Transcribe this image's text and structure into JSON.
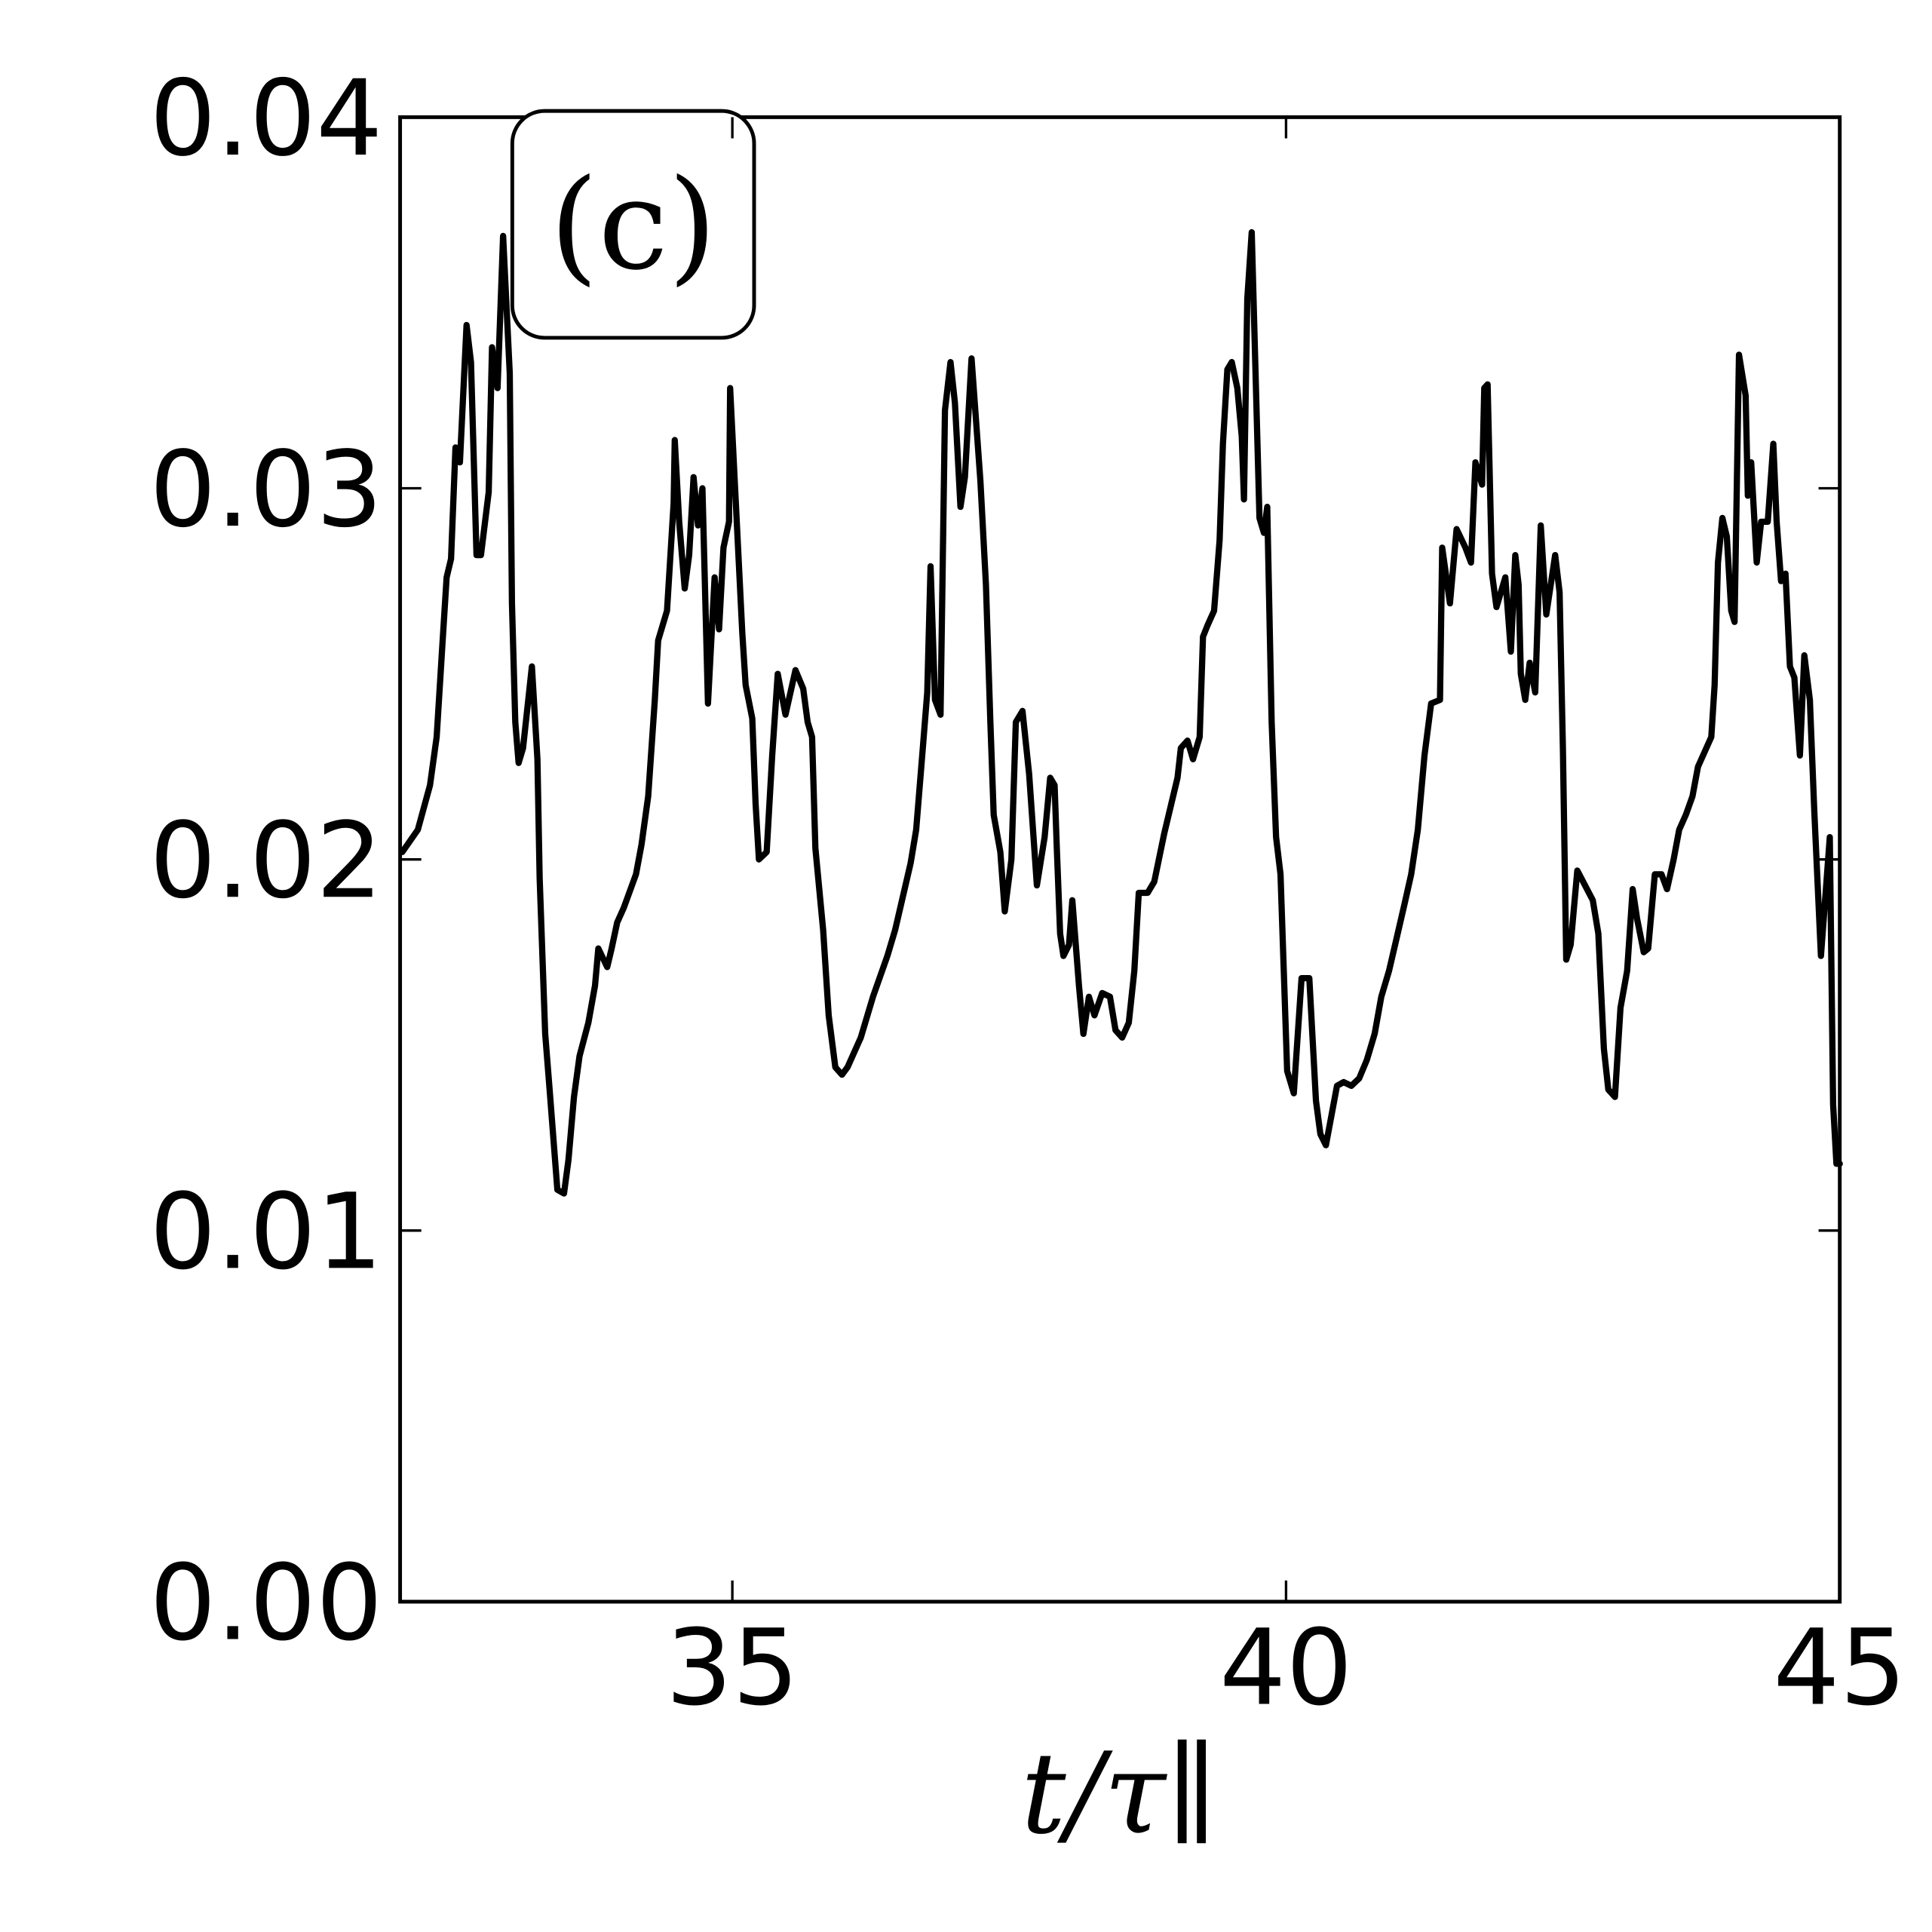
{
  "chart_data": {
    "type": "line",
    "xlabel": "t/τ∥",
    "annotation": "(c)",
    "xlim": [
      32,
      45
    ],
    "xticks": [
      35,
      40,
      45
    ],
    "ylim": [
      0,
      0.04
    ],
    "yticks": [
      {
        "value": 0,
        "label": "0.00"
      },
      0.01,
      0.02,
      0.03,
      0.04
    ],
    "grid": false,
    "series": [
      {
        "color": "#000000",
        "x": [
          32.02,
          32.16,
          32.27,
          32.33,
          32.38,
          32.42,
          32.46,
          32.5,
          32.54,
          32.6,
          32.64,
          32.69,
          32.73,
          32.8,
          32.83,
          32.88,
          32.93,
          32.99,
          33.01,
          33.04,
          33.07,
          33.11,
          33.19,
          33.24,
          33.26,
          33.31,
          33.35,
          33.42,
          33.48,
          33.52,
          33.57,
          33.62,
          33.7,
          33.76,
          33.79,
          33.87,
          33.91,
          33.96,
          34.02,
          34.13,
          34.18,
          34.24,
          34.3,
          34.33,
          34.41,
          34.47,
          34.48,
          34.52,
          34.57,
          34.61,
          34.65,
          34.69,
          34.73,
          34.78,
          34.84,
          34.88,
          34.92,
          34.97,
          34.98,
          35.03,
          35.09,
          35.12,
          35.18,
          35.21,
          35.24,
          35.31,
          35.36,
          35.41,
          35.48,
          35.57,
          35.64,
          35.68,
          35.72,
          35.75,
          35.82,
          35.87,
          35.93,
          35.99,
          36.04,
          36.16,
          36.27,
          36.4,
          36.47,
          36.54,
          36.61,
          36.66,
          36.72,
          36.76,
          36.79,
          36.83,
          36.88,
          36.92,
          36.97,
          37.01,
          37.06,
          37.1,
          37.16,
          37.24,
          37.29,
          37.33,
          37.36,
          37.42,
          37.46,
          37.52,
          37.56,
          37.62,
          37.68,
          37.75,
          37.82,
          37.87,
          37.91,
          37.93,
          37.96,
          37.99,
          38.04,
          38.07,
          38.13,
          38.17,
          38.22,
          38.27,
          38.34,
          38.41,
          38.46,
          38.52,
          38.58,
          38.63,
          38.67,
          38.75,
          38.81,
          38.9,
          39.02,
          39.05,
          39.11,
          39.16,
          39.22,
          39.25,
          39.29,
          39.35,
          39.4,
          39.43,
          39.47,
          39.51,
          39.56,
          39.6,
          39.62,
          39.65,
          39.69,
          39.76,
          39.8,
          39.83,
          39.87,
          39.91,
          39.95,
          40.01,
          40.07,
          40.14,
          40.21,
          40.27,
          40.31,
          40.36,
          40.41,
          40.46,
          40.52,
          40.59,
          40.66,
          40.73,
          40.8,
          40.86,
          40.93,
          41.0,
          41.07,
          41.13,
          41.19,
          41.25,
          41.31,
          41.39,
          41.41,
          41.48,
          41.54,
          41.62,
          41.67,
          41.71,
          41.77,
          41.79,
          41.82,
          41.86,
          41.9,
          41.98,
          42.03,
          42.07,
          42.1,
          42.12,
          42.16,
          42.2,
          42.25,
          42.3,
          42.35,
          42.43,
          42.47,
          42.5,
          42.53,
          42.57,
          42.63,
          42.77,
          42.82,
          42.87,
          42.91,
          42.97,
          43.02,
          43.08,
          43.13,
          43.17,
          43.23,
          43.27,
          43.33,
          43.39,
          43.44,
          43.5,
          43.55,
          43.61,
          43.67,
          43.72,
          43.84,
          43.87,
          43.9,
          43.94,
          43.98,
          44.02,
          44.05,
          44.09,
          44.15,
          44.17,
          44.2,
          44.25,
          44.29,
          44.35,
          44.4,
          44.43,
          44.47,
          44.51,
          44.55,
          44.59,
          44.64,
          44.68,
          44.73,
          44.77,
          44.83,
          44.91,
          44.94,
          44.97,
          45.0
        ],
        "values": [
          0.0202,
          0.0208,
          0.022,
          0.0233,
          0.0257,
          0.0276,
          0.0281,
          0.0311,
          0.0307,
          0.0344,
          0.0334,
          0.0282,
          0.0282,
          0.0299,
          0.0338,
          0.0327,
          0.0368,
          0.0331,
          0.0269,
          0.0237,
          0.0226,
          0.023,
          0.0252,
          0.0227,
          0.0195,
          0.0153,
          0.0138,
          0.0111,
          0.011,
          0.0119,
          0.0136,
          0.0147,
          0.0156,
          0.0166,
          0.0176,
          0.0171,
          0.0176,
          0.0183,
          0.0187,
          0.0196,
          0.0204,
          0.0217,
          0.0243,
          0.0259,
          0.0267,
          0.0296,
          0.0313,
          0.0291,
          0.0273,
          0.0282,
          0.0303,
          0.029,
          0.03,
          0.0242,
          0.0276,
          0.0262,
          0.0284,
          0.0291,
          0.0327,
          0.0297,
          0.0261,
          0.0247,
          0.0238,
          0.0215,
          0.02,
          0.0202,
          0.0228,
          0.025,
          0.0239,
          0.0251,
          0.0246,
          0.0237,
          0.0233,
          0.0203,
          0.0181,
          0.0158,
          0.0144,
          0.0142,
          0.0144,
          0.0152,
          0.0163,
          0.0174,
          0.0181,
          0.019,
          0.0199,
          0.0208,
          0.023,
          0.0245,
          0.0279,
          0.0243,
          0.0239,
          0.0321,
          0.0334,
          0.0323,
          0.0295,
          0.0303,
          0.0335,
          0.0302,
          0.0274,
          0.0237,
          0.0212,
          0.0202,
          0.0186,
          0.02,
          0.0237,
          0.024,
          0.0223,
          0.0193,
          0.0206,
          0.0222,
          0.022,
          0.0203,
          0.018,
          0.0174,
          0.0177,
          0.0189,
          0.0166,
          0.0153,
          0.0163,
          0.0158,
          0.0164,
          0.0163,
          0.0154,
          0.0152,
          0.0156,
          0.017,
          0.0191,
          0.0191,
          0.0194,
          0.0207,
          0.0222,
          0.023,
          0.0232,
          0.0227,
          0.0233,
          0.026,
          0.0263,
          0.0267,
          0.0286,
          0.0312,
          0.0332,
          0.0334,
          0.0327,
          0.0314,
          0.0297,
          0.0351,
          0.0369,
          0.0292,
          0.0288,
          0.0295,
          0.0237,
          0.0206,
          0.0196,
          0.0143,
          0.0137,
          0.0168,
          0.0168,
          0.0135,
          0.0126,
          0.0123,
          0.0131,
          0.0139,
          0.014,
          0.0139,
          0.0141,
          0.0146,
          0.0153,
          0.0163,
          0.017,
          0.0179,
          0.0188,
          0.0196,
          0.0208,
          0.0228,
          0.0242,
          0.0243,
          0.0284,
          0.0269,
          0.0289,
          0.0284,
          0.028,
          0.0307,
          0.0301,
          0.0327,
          0.0328,
          0.0277,
          0.0268,
          0.0276,
          0.0256,
          0.0282,
          0.0274,
          0.025,
          0.0243,
          0.0253,
          0.0245,
          0.029,
          0.0266,
          0.0282,
          0.0272,
          0.023,
          0.0173,
          0.0177,
          0.0197,
          0.0189,
          0.018,
          0.0149,
          0.0138,
          0.0136,
          0.016,
          0.017,
          0.0192,
          0.0184,
          0.0175,
          0.0176,
          0.0196,
          0.0196,
          0.0192,
          0.02,
          0.0208,
          0.0212,
          0.0217,
          0.0225,
          0.0233,
          0.0247,
          0.028,
          0.0292,
          0.0287,
          0.0267,
          0.0264,
          0.0336,
          0.0325,
          0.0298,
          0.0307,
          0.028,
          0.0291,
          0.0291,
          0.0312,
          0.0291,
          0.0275,
          0.0277,
          0.0252,
          0.0249,
          0.0228,
          0.0255,
          0.0243,
          0.0213,
          0.0174,
          0.0206,
          0.0134,
          0.0118,
          0.0118
        ]
      }
    ]
  }
}
